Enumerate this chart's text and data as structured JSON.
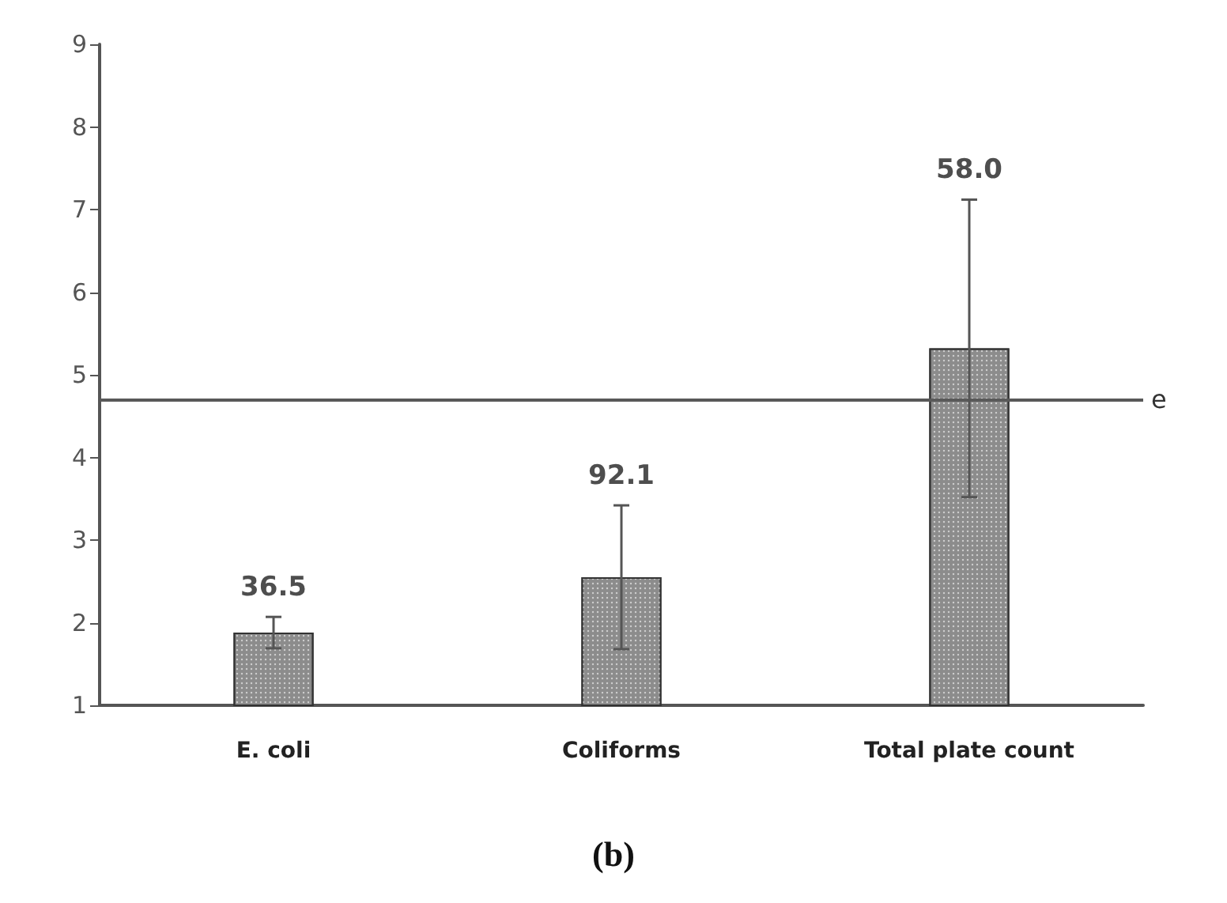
{
  "chart_data": {
    "type": "bar",
    "categories": [
      "E. coli",
      "Coliforms",
      "Total plate count"
    ],
    "values": [
      1.88,
      2.55,
      5.32
    ],
    "errors": [
      0.19,
      0.87,
      1.8
    ],
    "color": "#8c8c8c",
    "ylim": [
      1,
      9
    ],
    "yticks": [
      1,
      2,
      3,
      4,
      5,
      6,
      7,
      8,
      9
    ],
    "grid": false,
    "ref_lines": [
      {
        "axis": "y",
        "value": 4.7,
        "label": "e",
        "color": "#595959"
      }
    ],
    "annotations": [
      {
        "text": "36.5",
        "x": "E. coli",
        "y": 2.07
      },
      {
        "text": "92.1",
        "x": "Coliforms",
        "y": 3.42
      },
      {
        "text": "58.0",
        "x": "Total plate count",
        "y": 7.12
      },
      "(b)"
    ]
  }
}
